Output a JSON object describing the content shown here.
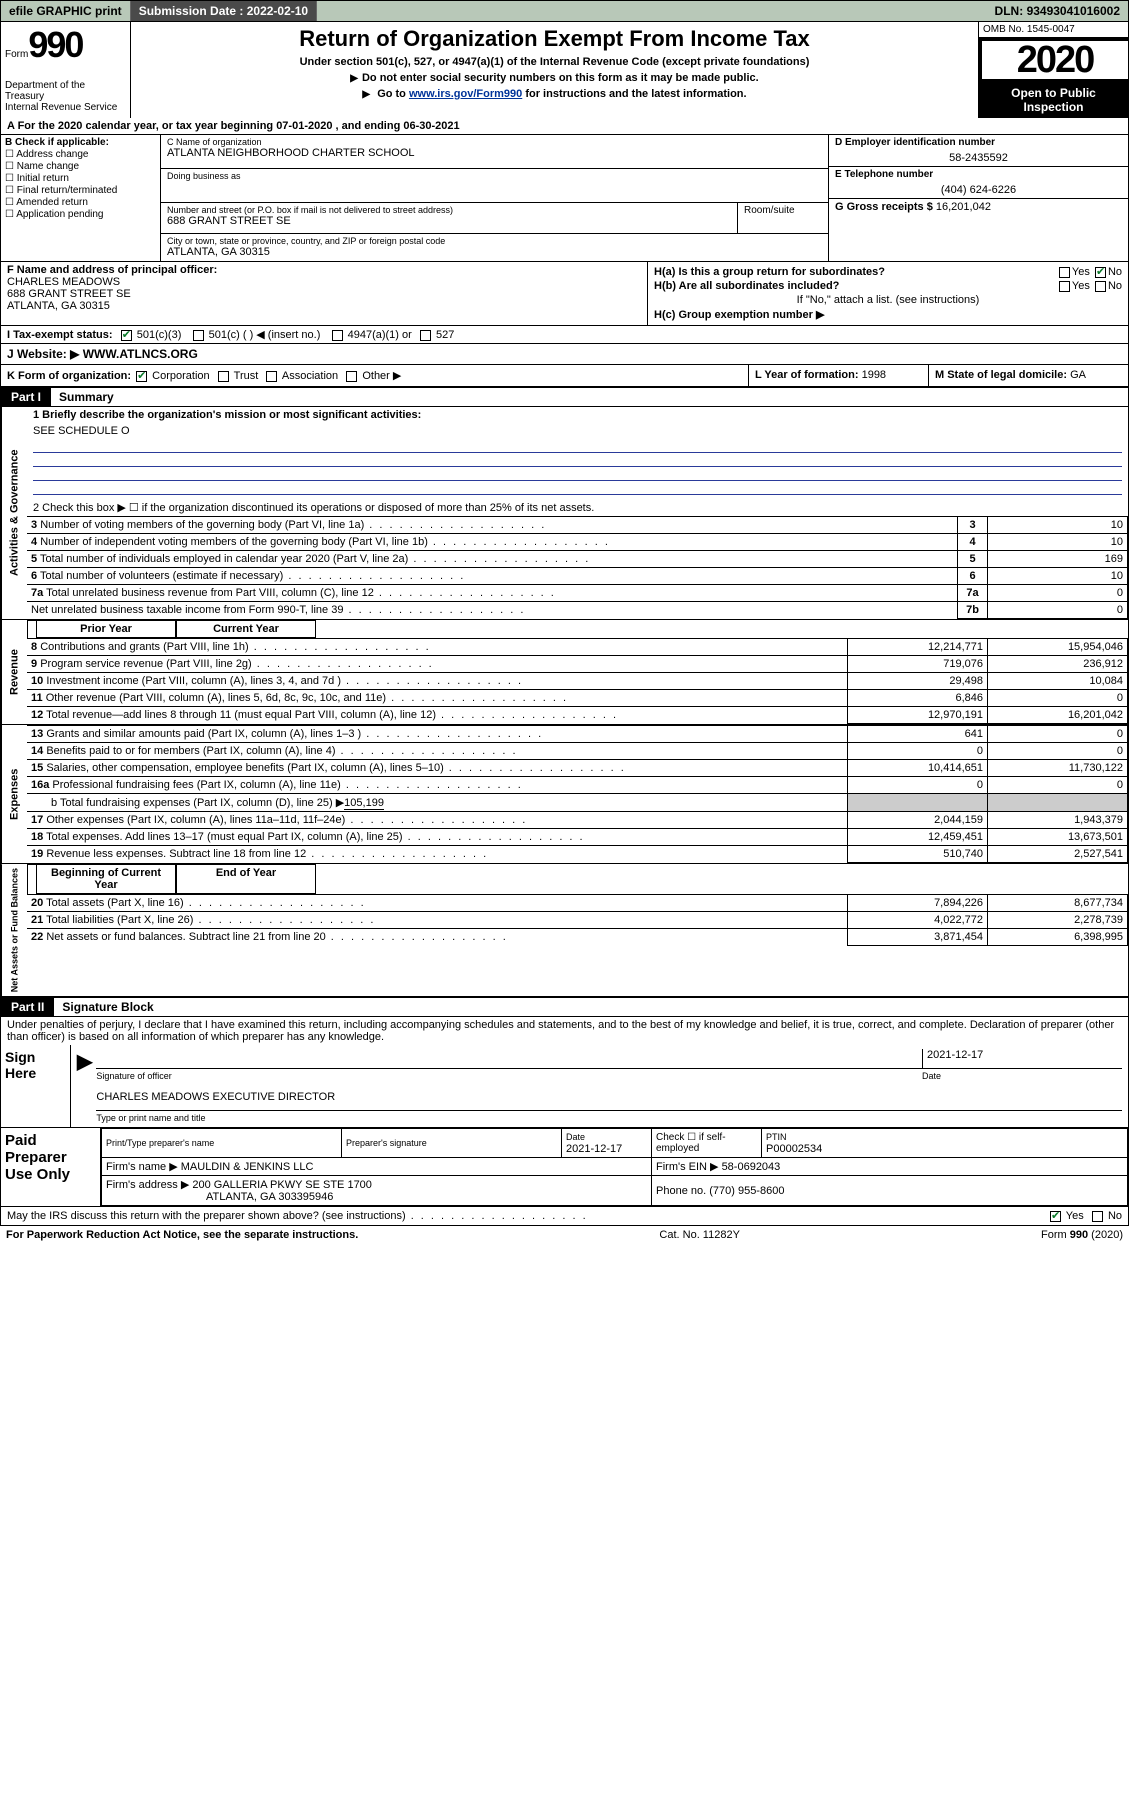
{
  "topbar": {
    "efile": "efile GRAPHIC print",
    "sub_lbl": "Submission Date :",
    "sub_val": "2022-02-10",
    "dln_lbl": "DLN:",
    "dln_val": "93493041016002"
  },
  "header": {
    "form_word": "Form",
    "form_num": "990",
    "dept": "Department of the Treasury",
    "irs": "Internal Revenue Service",
    "title": "Return of Organization Exempt From Income Tax",
    "sub1": "Under section 501(c), 527, or 4947(a)(1) of the Internal Revenue Code (except private foundations)",
    "sub2": "Do not enter social security numbers on this form as it may be made public.",
    "sub3_pre": "Go to ",
    "sub3_link": "www.irs.gov/Form990",
    "sub3_post": " for instructions and the latest information.",
    "omb": "OMB No. 1545-0047",
    "year": "2020",
    "open": "Open to Public Inspection"
  },
  "yearline": "A For the 2020 calendar year, or tax year beginning 07-01-2020    , and ending 06-30-2021",
  "boxB": {
    "lbl": "B Check if applicable:",
    "opts": [
      "Address change",
      "Name change",
      "Initial return",
      "Final return/terminated",
      "Amended return",
      "Application pending"
    ]
  },
  "boxC": {
    "name_lbl": "C Name of organization",
    "name": "ATLANTA NEIGHBORHOOD CHARTER SCHOOL",
    "dba_lbl": "Doing business as",
    "addr_lbl": "Number and street (or P.O. box if mail is not delivered to street address)",
    "room_lbl": "Room/suite",
    "addr": "688 GRANT STREET SE",
    "city_lbl": "City or town, state or province, country, and ZIP or foreign postal code",
    "city": "ATLANTA, GA  30315"
  },
  "boxD": {
    "lbl": "D Employer identification number",
    "val": "58-2435592"
  },
  "boxE": {
    "lbl": "E Telephone number",
    "val": "(404) 624-6226"
  },
  "boxG": {
    "lbl": "G Gross receipts $",
    "val": "16,201,042"
  },
  "boxF": {
    "lbl": "F  Name and address of principal officer:",
    "name": "CHARLES MEADOWS",
    "addr1": "688 GRANT STREET SE",
    "addr2": "ATLANTA, GA  30315"
  },
  "boxH": {
    "a_lbl": "H(a)  Is this a group return for subordinates?",
    "a_yes": "Yes",
    "a_no": "No",
    "b_lbl": "H(b)  Are all subordinates included?",
    "b_yes": "Yes",
    "b_no": "No",
    "note": "If \"No,\" attach a list. (see instructions)",
    "c_lbl": "H(c)  Group exemption number ▶"
  },
  "boxI": {
    "lbl": "I   Tax-exempt status:",
    "o1": "501(c)(3)",
    "o2": "501(c) (  ) ◀ (insert no.)",
    "o3": "4947(a)(1) or",
    "o4": "527"
  },
  "boxJ": {
    "lbl": "J   Website: ▶",
    "val": "WWW.ATLNCS.ORG"
  },
  "boxK": {
    "lbl": "K Form of organization:",
    "o1": "Corporation",
    "o2": "Trust",
    "o3": "Association",
    "o4": "Other ▶",
    "l_lbl": "L Year of formation:",
    "l_val": "1998",
    "m_lbl": "M State of legal domicile:",
    "m_val": "GA"
  },
  "part1": {
    "num": "Part I",
    "title": "Summary",
    "vlab1": "Activities & Governance",
    "vlab2": "Revenue",
    "vlab3": "Expenses",
    "vlab4": "Net Assets or Fund Balances",
    "q1": "1  Briefly describe the organization's mission or most significant activities:",
    "q1a": "SEE SCHEDULE O",
    "q2": "2   Check this box ▶ ☐  if the organization discontinued its operations or disposed of more than 25% of its net assets.",
    "rows_top": [
      {
        "n": "3",
        "t": "Number of voting members of the governing body (Part VI, line 1a)",
        "k": "3",
        "v": "10"
      },
      {
        "n": "4",
        "t": "Number of independent voting members of the governing body (Part VI, line 1b)",
        "k": "4",
        "v": "10"
      },
      {
        "n": "5",
        "t": "Total number of individuals employed in calendar year 2020 (Part V, line 2a)",
        "k": "5",
        "v": "169"
      },
      {
        "n": "6",
        "t": "Total number of volunteers (estimate if necessary)",
        "k": "6",
        "v": "10"
      },
      {
        "n": "7a",
        "t": "Total unrelated business revenue from Part VIII, column (C), line 12",
        "k": "7a",
        "v": "0"
      },
      {
        "n": "",
        "t": "Net unrelated business taxable income from Form 990-T, line 39",
        "k": "7b",
        "v": "0"
      }
    ],
    "col_prior": "Prior Year",
    "col_curr": "Current Year",
    "rev": [
      {
        "n": "8",
        "t": "Contributions and grants (Part VIII, line 1h)",
        "p": "12,214,771",
        "c": "15,954,046"
      },
      {
        "n": "9",
        "t": "Program service revenue (Part VIII, line 2g)",
        "p": "719,076",
        "c": "236,912"
      },
      {
        "n": "10",
        "t": "Investment income (Part VIII, column (A), lines 3, 4, and 7d )",
        "p": "29,498",
        "c": "10,084"
      },
      {
        "n": "11",
        "t": "Other revenue (Part VIII, column (A), lines 5, 6d, 8c, 9c, 10c, and 11e)",
        "p": "6,846",
        "c": "0"
      },
      {
        "n": "12",
        "t": "Total revenue—add lines 8 through 11 (must equal Part VIII, column (A), line 12)",
        "p": "12,970,191",
        "c": "16,201,042"
      }
    ],
    "exp": [
      {
        "n": "13",
        "t": "Grants and similar amounts paid (Part IX, column (A), lines 1–3 )",
        "p": "641",
        "c": "0"
      },
      {
        "n": "14",
        "t": "Benefits paid to or for members (Part IX, column (A), line 4)",
        "p": "0",
        "c": "0"
      },
      {
        "n": "15",
        "t": "Salaries, other compensation, employee benefits (Part IX, column (A), lines 5–10)",
        "p": "10,414,651",
        "c": "11,730,122"
      },
      {
        "n": "16a",
        "t": "Professional fundraising fees (Part IX, column (A), line 11e)",
        "p": "0",
        "c": "0"
      }
    ],
    "exp16b_t": "b  Total fundraising expenses (Part IX, column (D), line 25) ▶",
    "exp16b_v": "105,199",
    "exp2": [
      {
        "n": "17",
        "t": "Other expenses (Part IX, column (A), lines 11a–11d, 11f–24e)",
        "p": "2,044,159",
        "c": "1,943,379"
      },
      {
        "n": "18",
        "t": "Total expenses. Add lines 13–17 (must equal Part IX, column (A), line 25)",
        "p": "12,459,451",
        "c": "13,673,501"
      },
      {
        "n": "19",
        "t": "Revenue less expenses. Subtract line 18 from line 12",
        "p": "510,740",
        "c": "2,527,541"
      }
    ],
    "col_beg": "Beginning of Current Year",
    "col_end": "End of Year",
    "net": [
      {
        "n": "20",
        "t": "Total assets (Part X, line 16)",
        "p": "7,894,226",
        "c": "8,677,734"
      },
      {
        "n": "21",
        "t": "Total liabilities (Part X, line 26)",
        "p": "4,022,772",
        "c": "2,278,739"
      },
      {
        "n": "22",
        "t": "Net assets or fund balances. Subtract line 21 from line 20",
        "p": "3,871,454",
        "c": "6,398,995"
      }
    ]
  },
  "part2": {
    "num": "Part II",
    "title": "Signature Block",
    "penalty": "Under penalties of perjury, I declare that I have examined this return, including accompanying schedules and statements, and to the best of my knowledge and belief, it is true, correct, and complete. Declaration of preparer (other than officer) is based on all information of which preparer has any knowledge.",
    "sign_here": "Sign Here",
    "sig_of": "Signature of officer",
    "sig_date_lbl": "Date",
    "sig_date": "2021-12-17",
    "sig_name": "CHARLES MEADOWS  EXECUTIVE DIRECTOR",
    "sig_type": "Type or print name and title",
    "paid": "Paid Preparer Use Only",
    "pp_name_lbl": "Print/Type preparer's name",
    "pp_sig_lbl": "Preparer's signature",
    "pp_date_lbl": "Date",
    "pp_date": "2021-12-17",
    "pp_self": "Check ☐ if self-employed",
    "pp_ptin_lbl": "PTIN",
    "pp_ptin": "P00002534",
    "firm_lbl": "Firm's name     ▶",
    "firm": "MAULDIN & JENKINS LLC",
    "firm_ein_lbl": "Firm's EIN ▶",
    "firm_ein": "58-0692043",
    "firm_addr_lbl": "Firm's address ▶",
    "firm_addr": "200 GALLERIA PKWY SE STE 1700",
    "firm_city": "ATLANTA, GA  303395946",
    "phone_lbl": "Phone no.",
    "phone": "(770) 955-8600",
    "discuss": "May the IRS discuss this return with the preparer shown above? (see instructions)",
    "d_yes": "Yes",
    "d_no": "No"
  },
  "footer": {
    "l": "For Paperwork Reduction Act Notice, see the separate instructions.",
    "m": "Cat. No. 11282Y",
    "r": "Form 990 (2020)"
  }
}
